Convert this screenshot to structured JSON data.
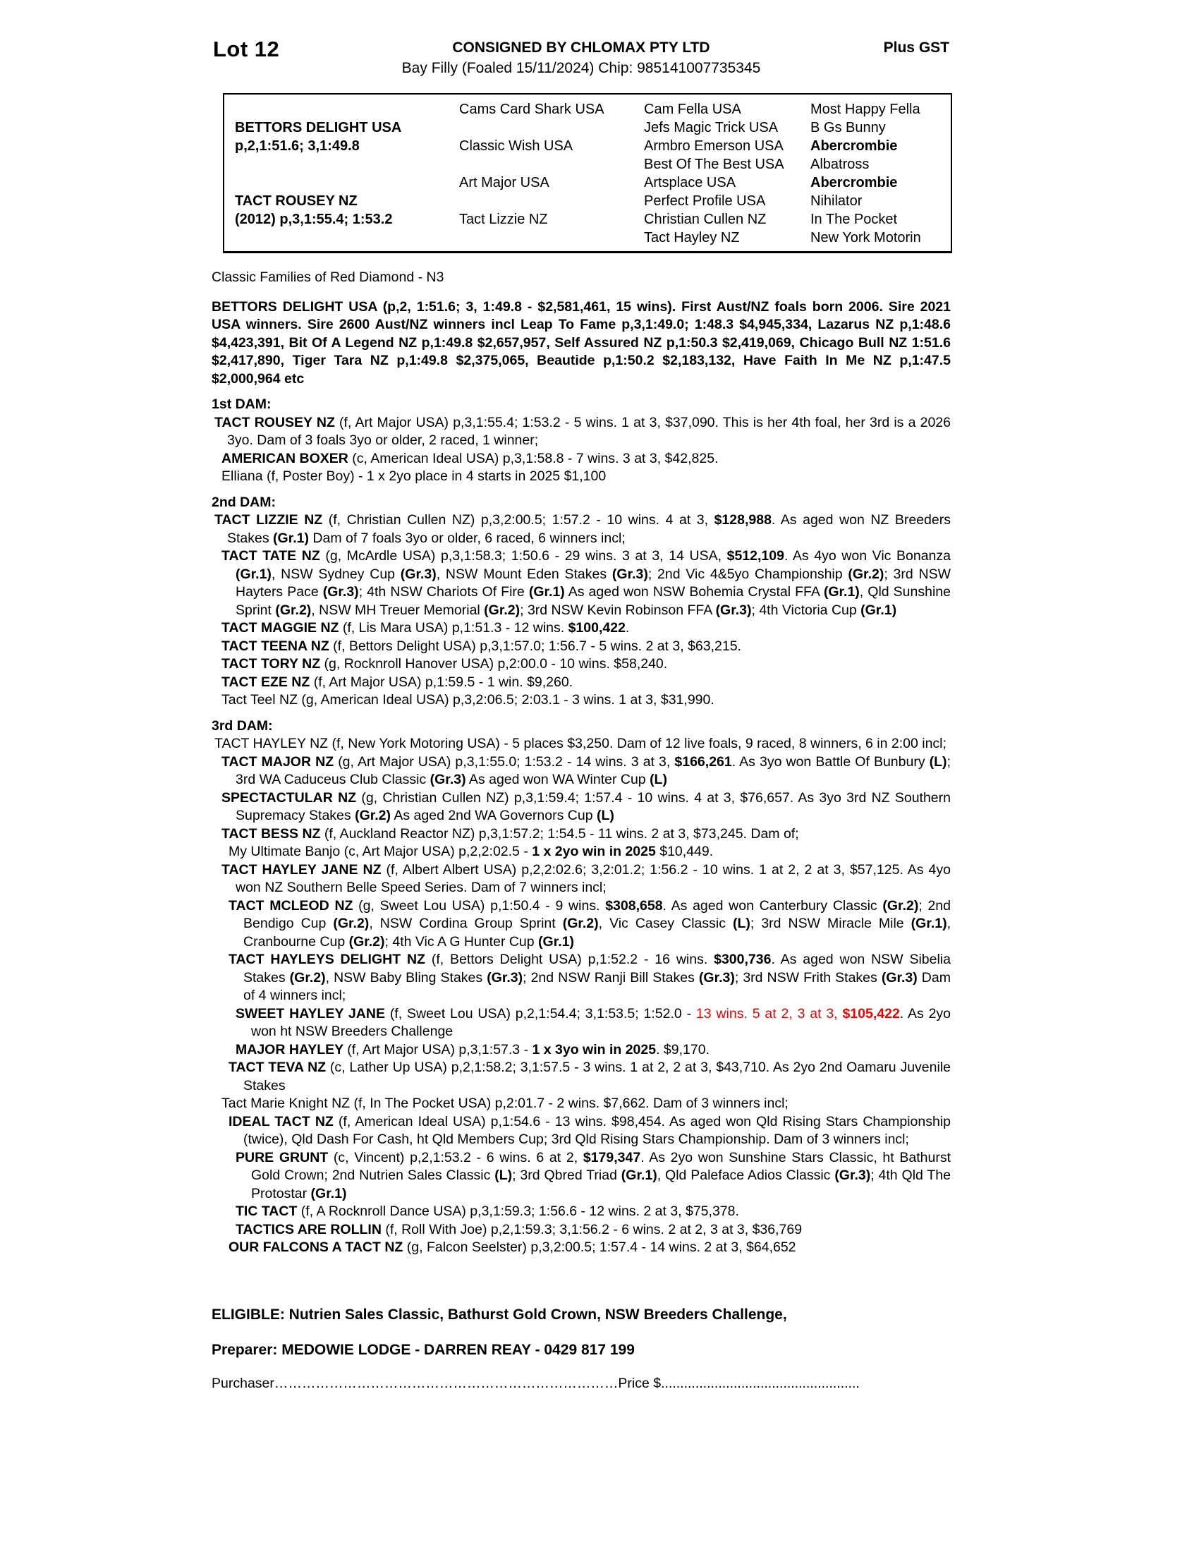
{
  "colors": {
    "text": "#000000",
    "highlight_red": "#f20000"
  },
  "header": {
    "lot": "Lot 12",
    "consignor": "CONSIGNED BY CHLOMAX PTY LTD",
    "gst": "Plus GST",
    "foal_description": "Bay Filly (Foaled 15/11/2024) Chip: 985141007735345"
  },
  "pedigree": {
    "sire": {
      "name": "BETTORS DELIGHT USA",
      "record": "p,2,1:51.6; 3,1:49.8"
    },
    "dam": {
      "name": "TACT ROUSEY NZ",
      "record": "(2012) p,3,1:55.4; 1:53.2"
    },
    "gen2": [
      "Cams Card Shark USA",
      "Classic Wish USA",
      "Art Major USA",
      "Tact Lizzie NZ"
    ],
    "gen3": [
      "Cam Fella USA",
      "Jefs Magic Trick USA",
      "Armbro Emerson USA",
      "Best Of The Best USA",
      "Artsplace USA",
      "Perfect Profile USA",
      "Christian Cullen NZ",
      "Tact Hayley NZ"
    ],
    "gen4": [
      {
        "t": "Most Happy Fella"
      },
      {
        "t": "B Gs Bunny"
      },
      {
        "t": "Abercrombie",
        "b": true
      },
      {
        "t": "Albatross"
      },
      {
        "t": "Abercrombie",
        "b": true
      },
      {
        "t": "Nihilator"
      },
      {
        "t": "In The Pocket"
      },
      {
        "t": "New York Motorin"
      }
    ]
  },
  "family_line": "Classic Families of Red Diamond - N3",
  "sire_paragraph": "BETTORS DELIGHT USA (p,2, 1:51.6; 3, 1:49.8 - $2,581,461, 15 wins). First Aust/NZ foals born 2006. Sire 2021 USA winners. Sire 2600 Aust/NZ winners incl Leap To Fame p,3,1:49.0; 1:48.3 $4,945,334, Lazarus NZ p,1:48.6 $4,423,391, Bit Of A Legend NZ p,1:49.8 $2,657,957, Self Assured NZ p,1:50.3 $2,419,069, Chicago Bull NZ 1:51.6 $2,417,890, Tiger Tara NZ p,1:49.8 $2,375,065, Beautide p,1:50.2 $2,183,132, Have Faith In Me NZ p,1:47.5 $2,000,964 etc",
  "dam_sections": [
    {
      "heading": "1st DAM:",
      "entries": [
        {
          "level": 0,
          "segs": [
            {
              "t": "TACT ROUSEY NZ ",
              "b": true
            },
            {
              "t": "(f, Art Major USA) p,3,1:55.4; 1:53.2 - 5 wins. 1 at 3, $37,090. This is her 4th foal, her 3rd is a 2026 3yo. Dam of 3 foals 3yo or older, 2 raced, 1 winner;"
            }
          ]
        },
        {
          "level": 1,
          "segs": [
            {
              "t": "AMERICAN BOXER ",
              "b": true
            },
            {
              "t": "(c, American Ideal USA) p,3,1:58.8 - 7 wins. 3 at 3, $42,825."
            }
          ]
        },
        {
          "level": 1,
          "segs": [
            {
              "t": "Elliana (f, Poster Boy) - 1 x 2yo place in 4 starts in 2025 $1,100"
            }
          ]
        }
      ]
    },
    {
      "heading": "2nd DAM:",
      "entries": [
        {
          "level": 0,
          "segs": [
            {
              "t": "TACT LIZZIE NZ ",
              "b": true
            },
            {
              "t": "(f, Christian Cullen NZ) p,3,2:00.5; 1:57.2 - 10 wins. 4 at 3, "
            },
            {
              "t": "$128,988",
              "b": true
            },
            {
              "t": ". As aged won NZ Breeders Stakes "
            },
            {
              "t": "(Gr.1)",
              "b": true
            },
            {
              "t": " Dam of 7 foals 3yo or older, 6 raced, 6 winners incl;"
            }
          ]
        },
        {
          "level": 1,
          "segs": [
            {
              "t": "TACT TATE NZ ",
              "b": true
            },
            {
              "t": "(g, McArdle USA) p,3,1:58.3; 1:50.6 - 29 wins. 3 at 3, 14 USA, "
            },
            {
              "t": "$512,109",
              "b": true
            },
            {
              "t": ". As 4yo won Vic Bonanza "
            },
            {
              "t": "(Gr.1)",
              "b": true
            },
            {
              "t": ", NSW Sydney Cup "
            },
            {
              "t": "(Gr.3)",
              "b": true
            },
            {
              "t": ", NSW Mount Eden Stakes "
            },
            {
              "t": "(Gr.3)",
              "b": true
            },
            {
              "t": "; 2nd Vic 4&5yo Championship "
            },
            {
              "t": "(Gr.2)",
              "b": true
            },
            {
              "t": "; 3rd NSW Hayters Pace "
            },
            {
              "t": "(Gr.3)",
              "b": true
            },
            {
              "t": "; 4th NSW Chariots Of Fire "
            },
            {
              "t": "(Gr.1)",
              "b": true
            },
            {
              "t": " As aged won NSW Bohemia Crystal FFA "
            },
            {
              "t": "(Gr.1)",
              "b": true
            },
            {
              "t": ", Qld Sunshine Sprint "
            },
            {
              "t": "(Gr.2)",
              "b": true
            },
            {
              "t": ", NSW MH Treuer Memorial "
            },
            {
              "t": "(Gr.2)",
              "b": true
            },
            {
              "t": "; 3rd NSW Kevin Robinson FFA "
            },
            {
              "t": "(Gr.3)",
              "b": true
            },
            {
              "t": "; 4th Victoria Cup "
            },
            {
              "t": "(Gr.1)",
              "b": true
            }
          ]
        },
        {
          "level": 1,
          "segs": [
            {
              "t": "TACT MAGGIE NZ ",
              "b": true
            },
            {
              "t": "(f, Lis Mara USA) p,1:51.3 - 12 wins. "
            },
            {
              "t": "$100,422",
              "b": true
            },
            {
              "t": "."
            }
          ]
        },
        {
          "level": 1,
          "segs": [
            {
              "t": "TACT TEENA NZ ",
              "b": true
            },
            {
              "t": "(f, Bettors Delight USA) p,3,1:57.0; 1:56.7 - 5 wins. 2 at 3, $63,215."
            }
          ]
        },
        {
          "level": 1,
          "segs": [
            {
              "t": "TACT TORY NZ ",
              "b": true
            },
            {
              "t": "(g, Rocknroll Hanover USA) p,2:00.0 - 10 wins. $58,240."
            }
          ]
        },
        {
          "level": 1,
          "segs": [
            {
              "t": "TACT EZE NZ ",
              "b": true
            },
            {
              "t": "(f, Art Major USA) p,1:59.5 - 1 win. $9,260."
            }
          ]
        },
        {
          "level": 1,
          "segs": [
            {
              "t": "Tact Teel NZ (g, American Ideal USA) p,3,2:06.5; 2:03.1 - 3 wins. 1 at 3, $31,990."
            }
          ]
        }
      ]
    },
    {
      "heading": "3rd DAM:",
      "entries": [
        {
          "level": 0,
          "segs": [
            {
              "t": "TACT HAYLEY NZ (f, New York Motoring USA) - 5 places $3,250. Dam of 12 live foals, 9 raced, 8 winners, 6 in 2:00 incl;"
            }
          ]
        },
        {
          "level": 1,
          "segs": [
            {
              "t": "TACT MAJOR NZ ",
              "b": true
            },
            {
              "t": "(g, Art Major USA) p,3,1:55.0; 1:53.2 - 14 wins. 3 at 3, "
            },
            {
              "t": "$166,261",
              "b": true
            },
            {
              "t": ". As 3yo won Battle Of Bunbury "
            },
            {
              "t": "(L)",
              "b": true
            },
            {
              "t": "; 3rd WA Caduceus Club Classic "
            },
            {
              "t": "(Gr.3)",
              "b": true
            },
            {
              "t": " As aged won WA Winter Cup "
            },
            {
              "t": "(L)",
              "b": true
            }
          ]
        },
        {
          "level": 1,
          "segs": [
            {
              "t": "SPECTACTULAR NZ ",
              "b": true
            },
            {
              "t": "(g, Christian Cullen NZ) p,3,1:59.4; 1:57.4 - 10 wins. 4 at 3, $76,657. As 3yo 3rd NZ Southern Supremacy Stakes "
            },
            {
              "t": "(Gr.2)",
              "b": true
            },
            {
              "t": " As aged 2nd WA Governors Cup "
            },
            {
              "t": "(L)",
              "b": true
            }
          ]
        },
        {
          "level": 1,
          "segs": [
            {
              "t": "TACT BESS NZ ",
              "b": true
            },
            {
              "t": "(f, Auckland Reactor NZ) p,3,1:57.2; 1:54.5 - 11 wins. 2 at 3, $73,245. Dam of;"
            }
          ]
        },
        {
          "level": 2,
          "segs": [
            {
              "t": "My Ultimate Banjo (c, Art Major USA) p,2,2:02.5 - "
            },
            {
              "t": "1 x 2yo win in 2025",
              "b": true
            },
            {
              "t": " $10,449."
            }
          ]
        },
        {
          "level": 1,
          "segs": [
            {
              "t": "TACT HAYLEY JANE NZ ",
              "b": true
            },
            {
              "t": "(f, Albert Albert USA) p,2,2:02.6; 3,2:01.2; 1:56.2 - 10 wins. 1 at 2, 2 at 3, $57,125. As 4yo won NZ Southern Belle Speed Series. Dam of 7 winners incl;"
            }
          ]
        },
        {
          "level": 2,
          "segs": [
            {
              "t": "TACT MCLEOD NZ ",
              "b": true
            },
            {
              "t": "(g, Sweet Lou USA) p,1:50.4 - 9 wins. "
            },
            {
              "t": "$308,658",
              "b": true
            },
            {
              "t": ". As aged won Canterbury Classic "
            },
            {
              "t": "(Gr.2)",
              "b": true
            },
            {
              "t": "; 2nd Bendigo Cup "
            },
            {
              "t": "(Gr.2)",
              "b": true
            },
            {
              "t": ", NSW Cordina Group Sprint "
            },
            {
              "t": "(Gr.2)",
              "b": true
            },
            {
              "t": ", Vic Casey Classic "
            },
            {
              "t": "(L)",
              "b": true
            },
            {
              "t": "; 3rd NSW Miracle Mile "
            },
            {
              "t": "(Gr.1)",
              "b": true
            },
            {
              "t": ", Cranbourne Cup "
            },
            {
              "t": "(Gr.2)",
              "b": true
            },
            {
              "t": "; 4th Vic A G Hunter Cup "
            },
            {
              "t": "(Gr.1)",
              "b": true
            }
          ]
        },
        {
          "level": 2,
          "segs": [
            {
              "t": "TACT HAYLEYS DELIGHT NZ ",
              "b": true
            },
            {
              "t": "(f, Bettors Delight USA) p,1:52.2 - 16 wins. "
            },
            {
              "t": "$300,736",
              "b": true
            },
            {
              "t": ". As aged won NSW Sibelia Stakes "
            },
            {
              "t": "(Gr.2)",
              "b": true
            },
            {
              "t": ", NSW Baby Bling Stakes "
            },
            {
              "t": "(Gr.3)",
              "b": true
            },
            {
              "t": "; 2nd NSW Ranji Bill Stakes "
            },
            {
              "t": "(Gr.3)",
              "b": true
            },
            {
              "t": "; 3rd NSW Frith Stakes "
            },
            {
              "t": "(Gr.3)",
              "b": true
            },
            {
              "t": " Dam of 4 winners incl;"
            }
          ]
        },
        {
          "level": 3,
          "segs": [
            {
              "t": "SWEET HAYLEY JANE ",
              "b": true
            },
            {
              "t": "(f, Sweet Lou USA) p,2,1:54.4; 3,1:53.5; 1:52.0 - "
            },
            {
              "t": "13 wins. 5 at 2, 3 at 3, ",
              "r": true
            },
            {
              "t": "$105,422",
              "r": true,
              "b": true
            },
            {
              "t": ". As 2yo won ht NSW Breeders Challenge"
            }
          ]
        },
        {
          "level": 3,
          "segs": [
            {
              "t": "MAJOR HAYLEY ",
              "b": true
            },
            {
              "t": "(f, Art Major USA) p,3,1:57.3 - "
            },
            {
              "t": "1 x 3yo win in 2025",
              "b": true
            },
            {
              "t": ". $9,170."
            }
          ]
        },
        {
          "level": 2,
          "segs": [
            {
              "t": "TACT TEVA NZ ",
              "b": true
            },
            {
              "t": "(c, Lather Up USA) p,2,1:58.2; 3,1:57.5 - 3 wins. 1 at 2, 2 at 3, $43,710. As 2yo 2nd Oamaru Juvenile Stakes"
            }
          ]
        },
        {
          "level": 1,
          "segs": [
            {
              "t": "Tact Marie Knight NZ (f, In The Pocket USA) p,2:01.7 - 2 wins. $7,662. Dam of 3 winners incl;"
            }
          ]
        },
        {
          "level": 2,
          "segs": [
            {
              "t": "IDEAL TACT NZ ",
              "b": true
            },
            {
              "t": "(f, American Ideal USA) p,1:54.6 - 13 wins. $98,454. As aged won Qld Rising Stars Championship (twice), Qld Dash For Cash, ht Qld Members Cup; 3rd Qld Rising Stars Championship. Dam of 3 winners incl;"
            }
          ]
        },
        {
          "level": 3,
          "segs": [
            {
              "t": "PURE GRUNT ",
              "b": true
            },
            {
              "t": "(c, Vincent) p,2,1:53.2 - 6 wins. 6 at 2, "
            },
            {
              "t": "$179,347",
              "b": true
            },
            {
              "t": ". As 2yo won Sunshine Stars Classic, ht Bathurst Gold Crown; 2nd Nutrien Sales Classic "
            },
            {
              "t": "(L)",
              "b": true
            },
            {
              "t": "; 3rd Qbred Triad "
            },
            {
              "t": "(Gr.1)",
              "b": true
            },
            {
              "t": ", Qld Paleface Adios Classic "
            },
            {
              "t": "(Gr.3)",
              "b": true
            },
            {
              "t": "; 4th Qld The Protostar "
            },
            {
              "t": "(Gr.1)",
              "b": true
            }
          ]
        },
        {
          "level": 3,
          "segs": [
            {
              "t": "TIC TACT ",
              "b": true
            },
            {
              "t": "(f, A Rocknroll Dance USA) p,3,1:59.3; 1:56.6 - 12 wins. 2 at 3, $75,378."
            }
          ]
        },
        {
          "level": 3,
          "segs": [
            {
              "t": "TACTICS ARE ROLLIN ",
              "b": true
            },
            {
              "t": "(f, Roll With Joe) p,2,1:59.3; 3,1:56.2 - 6 wins. 2 at 2, 3 at 3, $36,769"
            }
          ]
        },
        {
          "level": 2,
          "segs": [
            {
              "t": "OUR FALCONS A TACT NZ ",
              "b": true
            },
            {
              "t": "(g, Falcon Seelster) p,3,2:00.5; 1:57.4 - 14 wins. 2 at 3, $64,652"
            }
          ]
        }
      ]
    }
  ],
  "footer": {
    "eligible": "ELIGIBLE: Nutrien Sales Classic, Bathurst Gold Crown, NSW Breeders Challenge,",
    "preparer": "Preparer: MEDOWIE LODGE - DARREN REAY - 0429 817 199",
    "purchaser_label": "Purchaser",
    "purchaser_dots": "…………………………………………………………………",
    "price_label": "Price $",
    "price_dots": "...................................................."
  }
}
